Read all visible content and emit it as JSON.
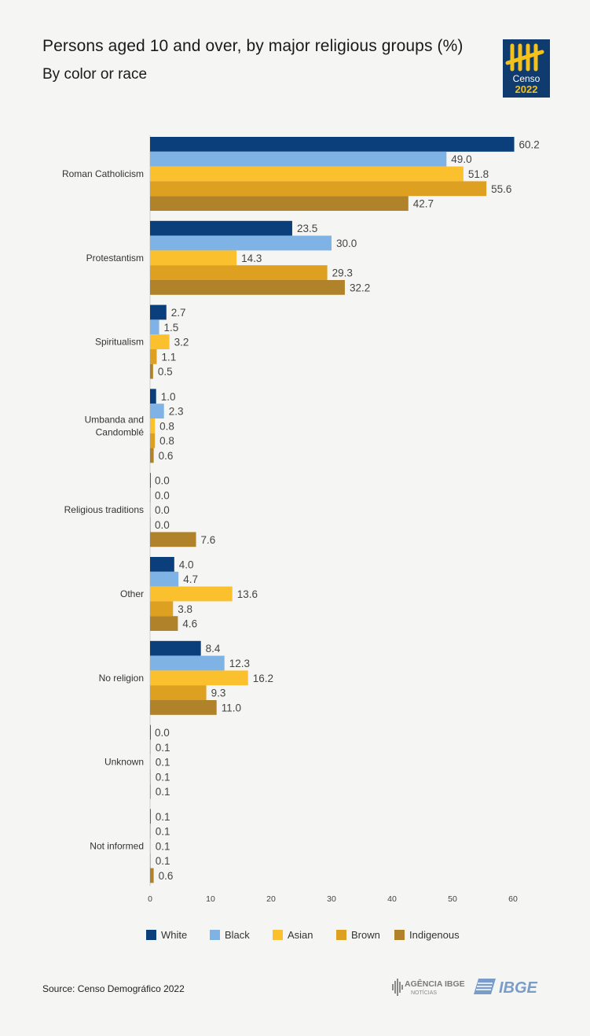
{
  "header": {
    "title": "Persons aged 10 and over, by major religious groups (%)",
    "subtitle": "By color or race"
  },
  "logos": {
    "censo_text": "Censo",
    "censo_year": "2022",
    "agencia_text": "AGÊNCIA IBGE",
    "agencia_sub": "NOTÍCIAS",
    "ibge_text": "IBGE"
  },
  "footer": {
    "source": "Source: Censo Demográfico 2022"
  },
  "chart_data": {
    "type": "bar",
    "orientation": "horizontal",
    "title": "Persons aged 10 and over, by major religious groups (%)",
    "subtitle": "By color or race",
    "categories": [
      "Roman Catholicism",
      "Protestantism",
      "Spiritualism",
      "Umbanda and Candomblé",
      "Religious traditions",
      "Other",
      "No religion",
      "Unknown",
      "Not informed"
    ],
    "series": [
      {
        "name": "White",
        "color": "#0b3f7c",
        "values": [
          60.2,
          23.5,
          2.7,
          1.0,
          0.0,
          4.0,
          8.4,
          0.0,
          0.1
        ]
      },
      {
        "name": "Black",
        "color": "#7fb3e6",
        "values": [
          49.0,
          30.0,
          1.5,
          2.3,
          0.0,
          4.7,
          12.3,
          0.1,
          0.1
        ]
      },
      {
        "name": "Asian",
        "color": "#fbc02d",
        "values": [
          51.8,
          14.3,
          3.2,
          0.8,
          0.0,
          13.6,
          16.2,
          0.1,
          0.1
        ]
      },
      {
        "name": "Brown",
        "color": "#dea021",
        "values": [
          55.6,
          29.3,
          1.1,
          0.8,
          0.0,
          3.8,
          9.3,
          0.1,
          0.1
        ]
      },
      {
        "name": "Indigenous",
        "color": "#b0832a",
        "values": [
          42.7,
          32.2,
          0.5,
          0.6,
          7.6,
          4.6,
          11.0,
          0.1,
          0.6
        ]
      }
    ],
    "value_labels": [
      [
        "60.2",
        "49.0",
        "51.8",
        "55.6",
        "42.7"
      ],
      [
        "23.5",
        "30.0",
        "14.3",
        "29.3",
        "32.2"
      ],
      [
        "2.7",
        "1.5",
        "3.2",
        "1.1",
        "0.5"
      ],
      [
        "1.0",
        "2.3",
        "0.8",
        "0.8",
        "0.6"
      ],
      [
        "0.0",
        "0.0",
        "0.0",
        "0.0",
        "7.6"
      ],
      [
        "4.0",
        "4.7",
        "13.6",
        "3.8",
        "4.6"
      ],
      [
        "8.4",
        "12.3",
        "16.2",
        "9.3",
        "11.0"
      ],
      [
        "0.0",
        "0.1",
        "0.1",
        "0.1",
        "0.1"
      ],
      [
        "0.1",
        "0.1",
        "0.1",
        "0.1",
        "0.6"
      ]
    ],
    "xticks": [
      "0",
      "10",
      "20",
      "30",
      "40",
      "50",
      "60"
    ],
    "xlim": [
      0,
      60
    ],
    "grid": false,
    "legend": "bottom"
  }
}
